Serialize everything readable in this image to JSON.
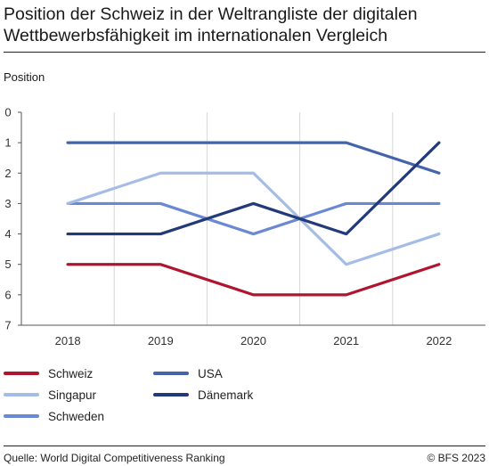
{
  "title": "Position der Schweiz in der Weltrangliste der digitalen Wettbewerbsfähigkeit im internationalen Vergleich",
  "source": "Quelle: World Digital Competitiveness Ranking",
  "copyright": "© BFS 2023",
  "chart_data": {
    "type": "line",
    "ylabel": "Position",
    "xlabel": "",
    "x": [
      "2018",
      "2019",
      "2020",
      "2021",
      "2022"
    ],
    "ylim": [
      0,
      7
    ],
    "y_inverted": true,
    "y_ticks": [
      "0",
      "1",
      "2",
      "3",
      "4",
      "5",
      "6",
      "7"
    ],
    "grid": "vertical",
    "legend_position": "bottom",
    "series": [
      {
        "name": "Schweiz",
        "values": [
          5,
          5,
          6,
          6,
          5
        ],
        "color": "#b0152f"
      },
      {
        "name": "USA",
        "values": [
          1,
          1,
          1,
          1,
          2
        ],
        "color": "#4463ad"
      },
      {
        "name": "Singapur",
        "values": [
          3,
          2,
          2,
          5,
          4
        ],
        "color": "#a5bde6"
      },
      {
        "name": "Dänemark",
        "values": [
          4,
          4,
          3,
          4,
          1
        ],
        "color": "#233a7a"
      },
      {
        "name": "Schweden",
        "values": [
          3,
          3,
          4,
          3,
          3
        ],
        "color": "#6a88d4"
      }
    ]
  }
}
